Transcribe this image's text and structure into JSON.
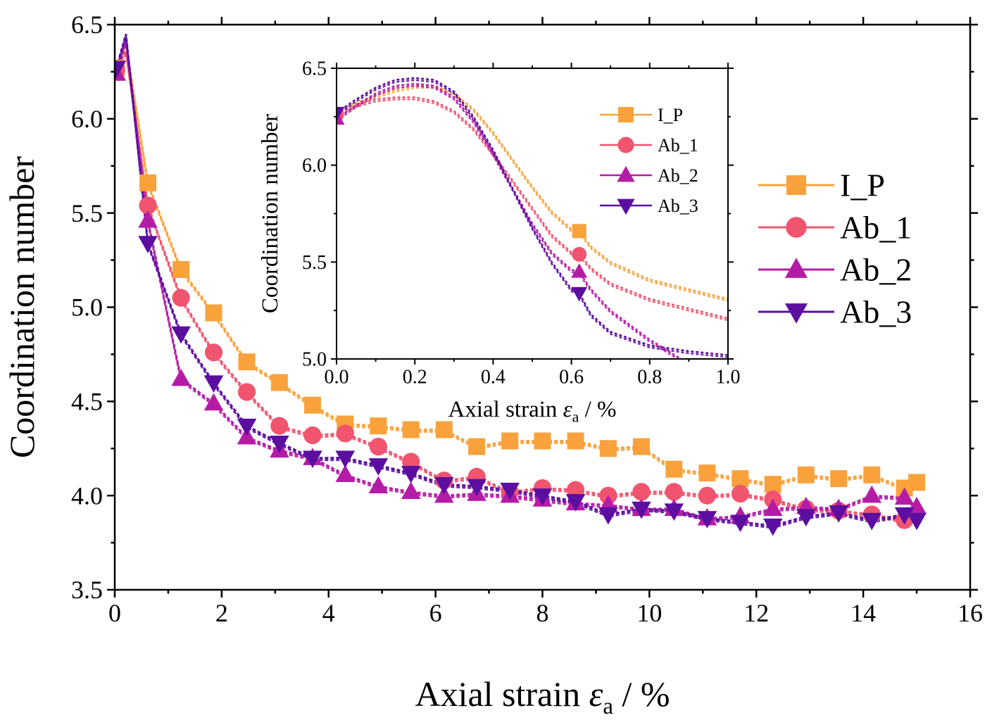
{
  "chart_data": [
    {
      "id": "main",
      "type": "line",
      "xlabel": "Axial strain ε_a / %",
      "xlabel_parts": {
        "prefix": "Axial strain ",
        "symbol": "ε",
        "subscript": "a",
        "suffix": " / %"
      },
      "ylabel": "Coordination number",
      "xlim": [
        0,
        16
      ],
      "ylim": [
        3.5,
        6.5
      ],
      "xticks": [
        "0",
        "2",
        "4",
        "6",
        "8",
        "10",
        "12",
        "14",
        "16"
      ],
      "yticks": [
        "3.5",
        "4.0",
        "4.5",
        "5.0",
        "5.5",
        "6.0",
        "6.5"
      ],
      "legend_position": "right",
      "series": [
        {
          "name": "I_P",
          "color": "#F9A23C",
          "marker": "square",
          "x": [
            0.03,
            0.21,
            0.62,
            1.24,
            1.85,
            2.47,
            3.08,
            3.7,
            4.31,
            4.93,
            5.54,
            6.16,
            6.77,
            7.39,
            8.0,
            8.62,
            9.23,
            9.85,
            10.46,
            11.08,
            11.7,
            12.31,
            12.93,
            13.54,
            14.16,
            14.77,
            15.0
          ],
          "y": [
            6.27,
            6.4,
            5.66,
            5.2,
            4.97,
            4.71,
            4.6,
            4.48,
            4.38,
            4.37,
            4.35,
            4.35,
            4.26,
            4.29,
            4.29,
            4.29,
            4.25,
            4.26,
            4.14,
            4.12,
            4.09,
            4.06,
            4.11,
            4.09,
            4.11,
            4.04,
            4.07
          ],
          "marker_x": [
            0.03,
            0.62,
            1.24,
            1.85,
            2.47,
            3.08,
            3.7,
            4.31,
            4.93,
            5.54,
            6.16,
            6.77,
            7.39,
            8.0,
            8.62,
            9.23,
            9.85,
            10.46,
            11.08,
            11.7,
            12.31,
            12.93,
            13.54,
            14.16,
            14.77,
            15.0
          ],
          "marker_y": [
            6.27,
            5.66,
            5.2,
            4.97,
            4.71,
            4.6,
            4.48,
            4.38,
            4.37,
            4.35,
            4.35,
            4.26,
            4.29,
            4.29,
            4.29,
            4.25,
            4.26,
            4.14,
            4.12,
            4.09,
            4.06,
            4.11,
            4.09,
            4.11,
            4.04,
            4.07
          ]
        },
        {
          "name": "Ab_1",
          "color": "#F0546E",
          "marker": "circle",
          "x": [
            0.03,
            0.21,
            0.62,
            1.24,
            1.85,
            2.47,
            3.08,
            3.7,
            4.31,
            4.93,
            5.54,
            6.16,
            6.77,
            7.39,
            8.0,
            8.62,
            9.23,
            9.85,
            10.46,
            11.08,
            11.7,
            12.31,
            12.93,
            13.54,
            14.16,
            14.77,
            15.0
          ],
          "y": [
            6.26,
            6.36,
            5.54,
            5.05,
            4.76,
            4.55,
            4.37,
            4.32,
            4.33,
            4.26,
            4.18,
            4.08,
            4.1,
            4.02,
            4.04,
            4.03,
            4.0,
            4.02,
            4.02,
            4.0,
            4.01,
            3.98,
            3.93,
            3.92,
            3.9,
            3.87,
            3.9
          ],
          "marker_x": [
            0.03,
            0.62,
            1.24,
            1.85,
            2.47,
            3.08,
            3.7,
            4.31,
            4.93,
            5.54,
            6.16,
            6.77,
            7.39,
            8.0,
            8.62,
            9.23,
            9.85,
            10.46,
            11.08,
            11.7,
            12.31,
            12.93,
            13.54,
            14.16,
            14.77
          ],
          "marker_y": [
            6.26,
            5.54,
            5.05,
            4.76,
            4.55,
            4.37,
            4.32,
            4.33,
            4.26,
            4.18,
            4.08,
            4.1,
            4.02,
            4.04,
            4.03,
            4.0,
            4.02,
            4.02,
            4.0,
            4.01,
            3.98,
            3.93,
            3.92,
            3.9,
            3.87
          ]
        },
        {
          "name": "Ab_2",
          "color": "#B51CA6",
          "marker": "triangle-up",
          "x": [
            0.03,
            0.21,
            0.62,
            1.24,
            1.85,
            2.47,
            3.08,
            3.7,
            4.31,
            4.93,
            5.54,
            6.16,
            6.77,
            7.39,
            8.0,
            8.62,
            9.23,
            9.85,
            10.46,
            11.08,
            11.7,
            12.31,
            12.93,
            13.54,
            14.16,
            14.77,
            15.0
          ],
          "y": [
            6.24,
            6.42,
            5.46,
            4.62,
            4.49,
            4.31,
            4.24,
            4.2,
            4.11,
            4.05,
            4.02,
            4.0,
            4.01,
            4.0,
            3.98,
            3.96,
            3.95,
            3.93,
            3.93,
            3.88,
            3.89,
            3.93,
            3.94,
            3.93,
            4.0,
            3.99,
            3.94
          ],
          "marker_x": [
            0.03,
            0.62,
            1.24,
            1.85,
            2.47,
            3.08,
            3.7,
            4.31,
            4.93,
            5.54,
            6.16,
            6.77,
            7.39,
            8.0,
            8.62,
            9.23,
            9.85,
            10.46,
            11.08,
            11.7,
            12.31,
            12.93,
            13.54,
            14.16,
            14.77,
            15.0
          ],
          "marker_y": [
            6.24,
            5.46,
            4.62,
            4.49,
            4.31,
            4.24,
            4.2,
            4.11,
            4.05,
            4.02,
            4.0,
            4.01,
            4.0,
            3.98,
            3.96,
            3.95,
            3.93,
            3.93,
            3.88,
            3.89,
            3.93,
            3.94,
            3.93,
            4.0,
            3.99,
            3.94
          ]
        },
        {
          "name": "Ab_3",
          "color": "#5B0EA0",
          "marker": "triangle-down",
          "x": [
            0.03,
            0.21,
            0.62,
            1.24,
            1.85,
            2.47,
            3.08,
            3.7,
            4.31,
            4.93,
            5.54,
            6.16,
            6.77,
            7.39,
            8.0,
            8.62,
            9.23,
            9.85,
            10.46,
            11.08,
            11.7,
            12.31,
            12.93,
            13.54,
            14.16,
            14.77,
            15.0
          ],
          "y": [
            6.27,
            6.45,
            5.34,
            4.86,
            4.6,
            4.37,
            4.28,
            4.2,
            4.2,
            4.16,
            4.12,
            4.06,
            4.05,
            4.03,
            4.0,
            3.97,
            3.9,
            3.93,
            3.92,
            3.88,
            3.86,
            3.84,
            3.89,
            3.91,
            3.87,
            3.9,
            3.87
          ],
          "marker_x": [
            0.03,
            0.62,
            1.24,
            1.85,
            2.47,
            3.08,
            3.7,
            4.31,
            4.93,
            5.54,
            6.16,
            6.77,
            7.39,
            8.0,
            8.62,
            9.23,
            9.85,
            10.46,
            11.08,
            11.7,
            12.31,
            12.93,
            13.54,
            14.16,
            14.77,
            15.0
          ],
          "marker_y": [
            6.27,
            5.34,
            4.86,
            4.6,
            4.37,
            4.28,
            4.2,
            4.2,
            4.16,
            4.12,
            4.06,
            4.05,
            4.03,
            4.0,
            3.97,
            3.9,
            3.93,
            3.92,
            3.88,
            3.86,
            3.84,
            3.89,
            3.91,
            3.87,
            3.9,
            3.87
          ]
        }
      ]
    },
    {
      "id": "inset",
      "type": "line",
      "xlabel": "Axial strain ε_a / %",
      "xlabel_parts": {
        "prefix": "Axial strain ",
        "symbol": "ε",
        "subscript": "a",
        "suffix": " / %"
      },
      "ylabel": "Coordination number",
      "xlim": [
        0.0,
        1.0
      ],
      "ylim": [
        5.0,
        6.5
      ],
      "xticks": [
        "0.0",
        "0.2",
        "0.4",
        "0.6",
        "0.8",
        "1.0"
      ],
      "yticks": [
        "5.0",
        "5.5",
        "6.0",
        "6.5"
      ],
      "legend_position": "top-right",
      "series": [
        {
          "name": "I_P",
          "color": "#F9A23C",
          "marker": "square",
          "x": [
            0.0,
            0.05,
            0.1,
            0.15,
            0.2,
            0.25,
            0.3,
            0.35,
            0.4,
            0.45,
            0.5,
            0.55,
            0.6,
            0.62,
            0.65,
            0.7,
            0.8,
            0.9,
            1.0
          ],
          "y": [
            6.28,
            6.32,
            6.36,
            6.39,
            6.41,
            6.41,
            6.37,
            6.29,
            6.17,
            6.03,
            5.89,
            5.76,
            5.67,
            5.66,
            5.58,
            5.5,
            5.41,
            5.36,
            5.31
          ],
          "marker_x": [
            0.62
          ],
          "marker_y": [
            5.66
          ]
        },
        {
          "name": "Ab_1",
          "color": "#F0546E",
          "marker": "circle",
          "x": [
            0.0,
            0.05,
            0.1,
            0.15,
            0.2,
            0.25,
            0.3,
            0.35,
            0.4,
            0.45,
            0.5,
            0.55,
            0.6,
            0.62,
            0.65,
            0.7,
            0.8,
            0.9,
            1.0
          ],
          "y": [
            6.26,
            6.31,
            6.34,
            6.35,
            6.35,
            6.33,
            6.28,
            6.19,
            6.06,
            5.92,
            5.78,
            5.64,
            5.55,
            5.54,
            5.47,
            5.39,
            5.31,
            5.26,
            5.21
          ],
          "marker_x": [
            0.0,
            0.62
          ],
          "marker_y": [
            6.26,
            5.54
          ]
        },
        {
          "name": "Ab_2",
          "color": "#B51CA6",
          "marker": "triangle-up",
          "x": [
            0.0,
            0.05,
            0.1,
            0.15,
            0.2,
            0.25,
            0.3,
            0.35,
            0.4,
            0.45,
            0.5,
            0.55,
            0.6,
            0.62,
            0.65,
            0.7,
            0.8,
            0.88
          ],
          "y": [
            6.24,
            6.31,
            6.37,
            6.41,
            6.42,
            6.41,
            6.35,
            6.23,
            6.06,
            5.88,
            5.7,
            5.55,
            5.46,
            5.45,
            5.36,
            5.25,
            5.1,
            5.0
          ],
          "marker_x": [
            0.0,
            0.62
          ],
          "marker_y": [
            6.24,
            5.45
          ]
        },
        {
          "name": "Ab_3",
          "color": "#5B0EA0",
          "marker": "triangle-down",
          "x": [
            0.0,
            0.05,
            0.1,
            0.15,
            0.2,
            0.25,
            0.3,
            0.35,
            0.4,
            0.45,
            0.5,
            0.55,
            0.6,
            0.62,
            0.65,
            0.7,
            0.8,
            0.9,
            1.0
          ],
          "y": [
            6.27,
            6.34,
            6.4,
            6.44,
            6.45,
            6.44,
            6.38,
            6.25,
            6.08,
            5.88,
            5.68,
            5.5,
            5.36,
            5.34,
            5.23,
            5.14,
            5.07,
            5.04,
            5.02
          ],
          "marker_x": [
            0.0,
            0.62
          ],
          "marker_y": [
            6.27,
            5.34
          ]
        }
      ]
    }
  ]
}
